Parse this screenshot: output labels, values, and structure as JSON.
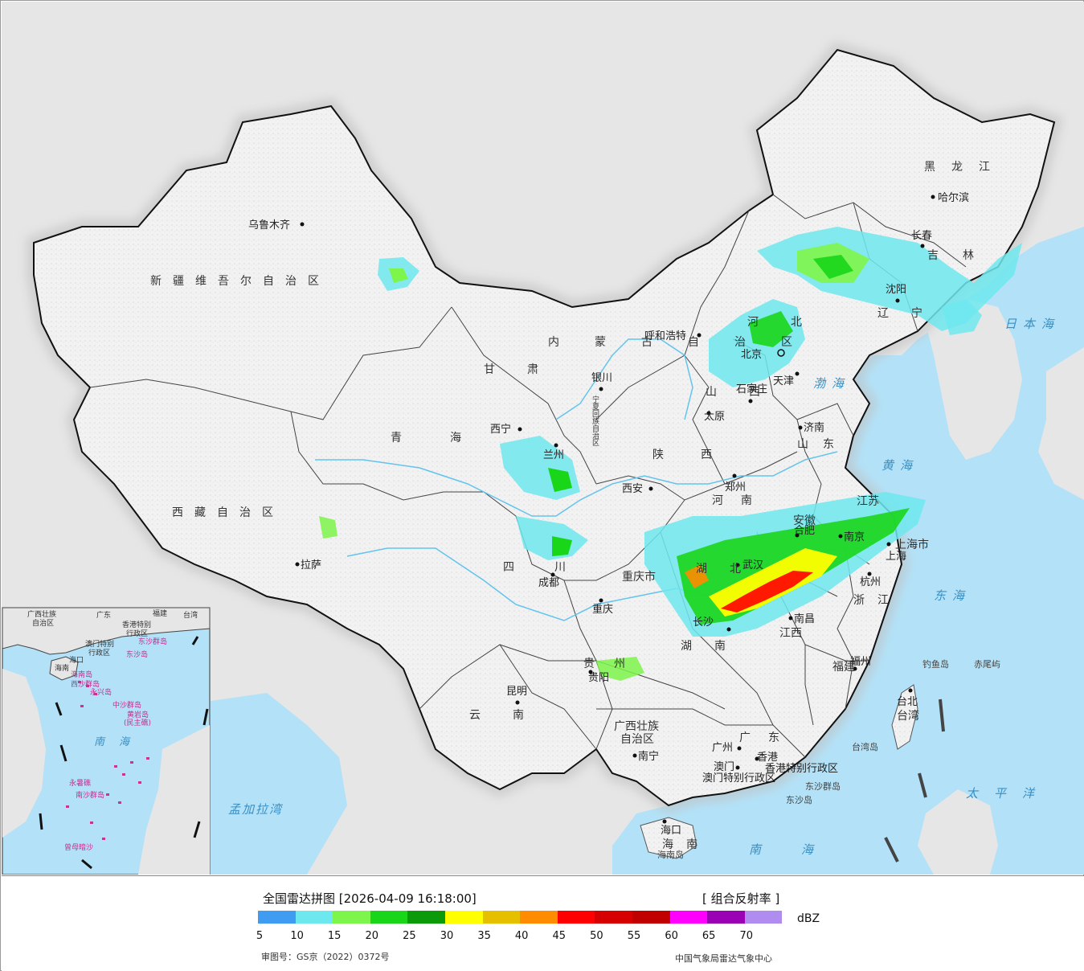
{
  "legend": {
    "title": "全国雷达拼图 [2026-04-09 16:18:00]",
    "product": "[ 组合反射率 ]",
    "unit": "dBZ",
    "approval": "审图号：GS京（2022）0372号",
    "source": "中国气象局雷达气象中心",
    "colors": [
      "#3f9cf0",
      "#6ee8ef",
      "#7ef54a",
      "#19d619",
      "#0a9a0a",
      "#ffff00",
      "#e6c000",
      "#ff8c00",
      "#ff0000",
      "#d60000",
      "#c00000",
      "#ff00ff",
      "#9a00b4",
      "#b08cf0"
    ],
    "ticks": [
      "5",
      "10",
      "15",
      "20",
      "25",
      "30",
      "35",
      "40",
      "45",
      "50",
      "55",
      "60",
      "65",
      "70"
    ]
  },
  "cities": [
    {
      "name": "乌鲁木齐"
    },
    {
      "name": "拉萨"
    },
    {
      "name": "西宁"
    },
    {
      "name": "兰州"
    },
    {
      "name": "银川"
    },
    {
      "name": "呼和浩特"
    },
    {
      "name": "北京"
    },
    {
      "name": "天津"
    },
    {
      "name": "石家庄"
    },
    {
      "name": "太原"
    },
    {
      "name": "济南"
    },
    {
      "name": "郑州"
    },
    {
      "name": "西安"
    },
    {
      "name": "成都"
    },
    {
      "name": "重庆"
    },
    {
      "name": "贵阳"
    },
    {
      "name": "昆明"
    },
    {
      "name": "南宁"
    },
    {
      "name": "广州"
    },
    {
      "name": "香港"
    },
    {
      "name": "澳门"
    },
    {
      "name": "海口"
    },
    {
      "name": "长沙"
    },
    {
      "name": "武汉"
    },
    {
      "name": "合肥"
    },
    {
      "name": "南京"
    },
    {
      "name": "上海"
    },
    {
      "name": "杭州"
    },
    {
      "name": "南昌"
    },
    {
      "name": "福州"
    },
    {
      "name": "台北"
    },
    {
      "name": "沈阳"
    },
    {
      "name": "长春"
    },
    {
      "name": "哈尔滨"
    }
  ],
  "provinces": [
    {
      "name": "新疆维吾尔自治区"
    },
    {
      "name": "西藏自治区"
    },
    {
      "name": "青海"
    },
    {
      "name": "甘肃"
    },
    {
      "name": "内蒙古自治区"
    },
    {
      "name": "黑龙江"
    },
    {
      "name": "吉林"
    },
    {
      "name": "辽宁"
    },
    {
      "name": "河北"
    },
    {
      "name": "山西"
    },
    {
      "name": "山东"
    },
    {
      "name": "河南"
    },
    {
      "name": "陕西"
    },
    {
      "name": "四川"
    },
    {
      "name": "重庆市"
    },
    {
      "name": "湖北"
    },
    {
      "name": "安徽"
    },
    {
      "name": "江苏"
    },
    {
      "name": "上海市"
    },
    {
      "name": "浙江"
    },
    {
      "name": "江西"
    },
    {
      "name": "湖南"
    },
    {
      "name": "贵州"
    },
    {
      "name": "云南"
    },
    {
      "name": "广西壮族"
    },
    {
      "name": "自治区"
    },
    {
      "name": "广东"
    },
    {
      "name": "福建"
    },
    {
      "name": "台湾"
    },
    {
      "name": "海南"
    },
    {
      "name": "宁夏回族自治区"
    },
    {
      "name": "香港特别行政区"
    },
    {
      "name": "澳门特别行政区"
    }
  ],
  "seas": [
    {
      "name": "日本海"
    },
    {
      "name": "渤海"
    },
    {
      "name": "黄海"
    },
    {
      "name": "东海"
    },
    {
      "name": "太平洋"
    },
    {
      "name": "南海"
    },
    {
      "name": "孟加拉湾"
    }
  ],
  "islands": [
    {
      "name": "钓鱼岛"
    },
    {
      "name": "赤尾屿"
    },
    {
      "name": "台湾岛"
    },
    {
      "name": "东沙群岛"
    },
    {
      "name": "东沙岛"
    },
    {
      "name": "海南岛"
    }
  ],
  "inset": {
    "labels": [
      "广西壮族",
      "自治区",
      "广东",
      "福建",
      "台湾",
      "香港特别",
      "行政区",
      "澳门特别",
      "行政区",
      "东沙群岛",
      "东沙岛",
      "海口",
      "海南",
      "海南岛",
      "西沙群岛",
      "永兴岛",
      "中沙群岛",
      "黄岩岛",
      "(民主礁)",
      "南海",
      "永暑礁",
      "南沙群岛",
      "曾母暗沙"
    ]
  }
}
